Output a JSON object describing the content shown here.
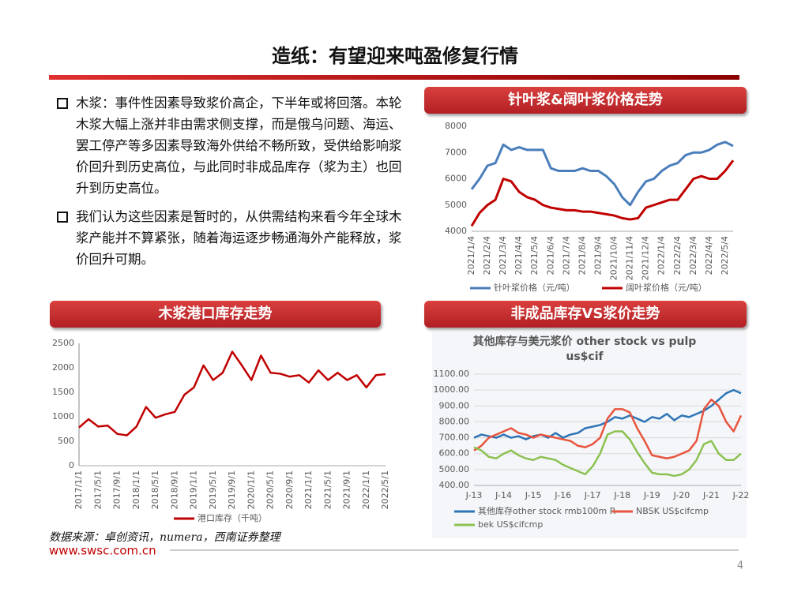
{
  "slide": {
    "title": "造纸：有望迎来吨盈修复行情",
    "bullets": [
      "木浆：事件性因素导致浆价高企，下半年或将回落。本轮木浆大幅上涨并非由需求侧支撑，而是俄乌问题、海运、罢工停产等多因素导致海外供给不畅所致，受供给影响浆价回升到历史高位，与此同时非成品库存（浆为主）也回升到历史高位。",
      "我们认为这些因素是暂时的，从供需结构来看今年全球木浆产能并不算紧张，随着海运逐步畅通海外产能释放，浆价回升可期。"
    ]
  },
  "headings": [
    "针叶浆&阔叶浆价格走势",
    "木浆港口库存走势",
    "非成品库存VS浆价走势"
  ],
  "chart_data": [
    {
      "type": "line",
      "categories": [
        "2021/1/4",
        null,
        "2021/2/4",
        null,
        "2021/3/4",
        null,
        "2021/4/4",
        null,
        "2021/5/4",
        null,
        "2021/6/4",
        null,
        "2021/7/4",
        null,
        "2021/8/4",
        null,
        "2021/9/4",
        null,
        "2021/10/4",
        null,
        "2021/11/4",
        null,
        "2021/12/4",
        null,
        "2022/1/4",
        null,
        "2022/2/4",
        null,
        "2022/3/4",
        null,
        "2022/4/4",
        null,
        "2022/5/4",
        null
      ],
      "series": [
        {
          "name": "针叶浆价格（元/吨）",
          "color": "#4a7ebb",
          "values": [
            5600,
            6000,
            6500,
            6600,
            7300,
            7100,
            7200,
            7100,
            7100,
            7100,
            6400,
            6300,
            6300,
            6300,
            6400,
            6300,
            6300,
            6100,
            5800,
            5300,
            5000,
            5500,
            5900,
            6000,
            6300,
            6500,
            6600,
            6900,
            7000,
            7000,
            7100,
            7300,
            7400,
            7250
          ]
        },
        {
          "name": "阔叶浆价格（元/吨）",
          "color": "#c00000",
          "values": [
            4200,
            4700,
            5000,
            5200,
            6000,
            5900,
            5500,
            5300,
            5200,
            5000,
            4900,
            4850,
            4800,
            4800,
            4750,
            4750,
            4700,
            4650,
            4600,
            4500,
            4450,
            4500,
            4900,
            5000,
            5100,
            5200,
            5200,
            5600,
            6000,
            6100,
            6000,
            6000,
            6300,
            6700
          ]
        }
      ],
      "ylim": [
        4000,
        8000
      ],
      "yticks": [
        4000,
        5000,
        6000,
        7000,
        8000
      ],
      "grid": false
    },
    {
      "type": "line",
      "categories": [
        "2017/1/1",
        null,
        "2017/5/1",
        null,
        "2017/9/1",
        null,
        "2018/1/1",
        null,
        "2018/5/1",
        null,
        "2018/9/1",
        null,
        "2019/1/1",
        null,
        "2019/5/1",
        null,
        "2019/9/1",
        null,
        "2020/1/1",
        null,
        "2020/5/1",
        null,
        "2020/9/1",
        null,
        "2021/1/1",
        null,
        "2021/5/1",
        null,
        "2021/9/1",
        null,
        "2022/1/1",
        null,
        "2022/5/1"
      ],
      "series": [
        {
          "name": "港口库存（千吨）",
          "color": "#c00000",
          "values": [
            780,
            950,
            800,
            820,
            650,
            620,
            800,
            1200,
            980,
            1050,
            1100,
            1450,
            1600,
            2050,
            1750,
            1900,
            2330,
            2050,
            1750,
            2250,
            1900,
            1880,
            1820,
            1850,
            1700,
            1950,
            1750,
            1900,
            1750,
            1850,
            1600,
            1850,
            1870
          ]
        }
      ],
      "ylim": [
        0,
        2500
      ],
      "yticks": [
        0,
        500,
        1000,
        1500,
        2000,
        2500
      ],
      "grid": false
    },
    {
      "type": "line",
      "title": "其他库存与美元浆价 other stock vs pulp us$cif",
      "categories": [
        "J-13",
        null,
        null,
        null,
        "J-14",
        null,
        null,
        null,
        "J-15",
        null,
        null,
        null,
        "J-16",
        null,
        null,
        null,
        "J-17",
        null,
        null,
        null,
        "J-18",
        null,
        null,
        null,
        "J-19",
        null,
        null,
        null,
        "J-20",
        null,
        null,
        null,
        "J-21",
        null,
        null,
        null,
        "J-22"
      ],
      "series": [
        {
          "name": "其他库存other stock rmb100m R",
          "color": "#2e75b6",
          "values": [
            700,
            720,
            710,
            700,
            720,
            700,
            710,
            690,
            710,
            720,
            700,
            730,
            700,
            720,
            730,
            760,
            770,
            780,
            800,
            830,
            820,
            840,
            820,
            800,
            830,
            820,
            850,
            810,
            840,
            830,
            850,
            870,
            900,
            940,
            980,
            1000,
            980
          ]
        },
        {
          "name": "NBSK US$cifcmp",
          "color": "#e8553e",
          "values": [
            620,
            650,
            700,
            720,
            740,
            760,
            730,
            720,
            700,
            720,
            710,
            700,
            690,
            680,
            650,
            640,
            660,
            700,
            820,
            880,
            880,
            860,
            760,
            680,
            590,
            580,
            570,
            580,
            600,
            620,
            680,
            880,
            940,
            900,
            800,
            740,
            840
          ]
        },
        {
          "name": "bek US$cifcmp",
          "color": "#8cc152",
          "values": [
            640,
            620,
            580,
            570,
            600,
            620,
            590,
            570,
            560,
            580,
            570,
            560,
            530,
            510,
            490,
            470,
            520,
            600,
            720,
            740,
            740,
            690,
            610,
            540,
            480,
            470,
            470,
            460,
            470,
            500,
            560,
            660,
            680,
            600,
            560,
            560,
            600
          ]
        }
      ],
      "ylim": [
        400,
        1100
      ],
      "yticks": [
        {
          "value": 400,
          "label": "400.00"
        },
        {
          "value": 500,
          "label": "500.00"
        },
        {
          "value": 600,
          "label": "600.00"
        },
        {
          "value": 700,
          "label": "700.00"
        },
        {
          "value": 800,
          "label": "800.00"
        },
        {
          "value": 900,
          "label": "900.00"
        },
        {
          "value": 1000,
          "label": "1000.00"
        },
        {
          "value": 1100,
          "label": "1100.00"
        }
      ],
      "grid": true
    }
  ],
  "source": "数据来源：卓创资讯，numera，西南证券整理",
  "url": "www.swsc.com.cn",
  "page": "4"
}
